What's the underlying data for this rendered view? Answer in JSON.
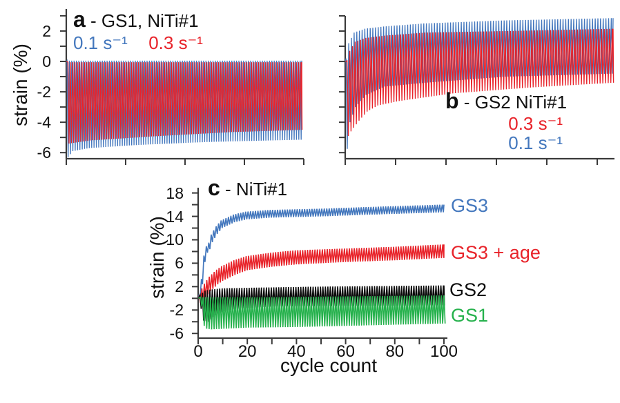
{
  "colors": {
    "blue": "#4377BD",
    "red": "#E8232A",
    "green": "#25B14C",
    "black": "#0B0B0B",
    "axis": "#3A3A3A",
    "text": "#111111"
  },
  "chart_data": [
    {
      "panel": "a",
      "type": "line",
      "panel_letter": "a",
      "title_rest": "- GS1, NiTi#1",
      "ylabel": "strain (%)",
      "xlabel": "",
      "ylim": [
        -6.4,
        3.45
      ],
      "y_ticks_labeled": [
        2,
        0,
        -2,
        -4,
        -6
      ],
      "y_ticks_minor": [
        3,
        1,
        -1,
        -3,
        -5
      ],
      "x_axis_labeled": false,
      "x_range_cycles": [
        0,
        100
      ],
      "legend": [
        {
          "label": "0.1 s⁻¹",
          "color_key": "blue"
        },
        {
          "label": "0.3 s⁻¹",
          "color_key": "red"
        }
      ],
      "series": [
        {
          "name": "0.1 s-1",
          "color_key": "blue",
          "cycles": 100,
          "upper_envelope": [
            [
              1,
              0.05
            ],
            [
              100,
              0.05
            ]
          ],
          "lower_envelope": [
            [
              1,
              -6.3
            ],
            [
              3,
              -5.9
            ],
            [
              10,
              -5.7
            ],
            [
              30,
              -5.5
            ],
            [
              60,
              -5.3
            ],
            [
              100,
              -5.15
            ]
          ]
        },
        {
          "name": "0.3 s-1",
          "color_key": "red",
          "cycles": 100,
          "upper_envelope": [
            [
              1,
              -0.05
            ],
            [
              100,
              -0.05
            ]
          ],
          "lower_envelope": [
            [
              1,
              -5.4
            ],
            [
              10,
              -5.2
            ],
            [
              40,
              -4.9
            ],
            [
              70,
              -4.65
            ],
            [
              100,
              -4.5
            ]
          ]
        }
      ]
    },
    {
      "panel": "b",
      "type": "line",
      "panel_letter": "b",
      "title_rest": "- GS2 NiTi#1",
      "ylabel": "",
      "xlabel": "",
      "ylim": [
        -6.4,
        3.0
      ],
      "y_ticks_labeled": [],
      "y_ticks_minor": [
        3,
        2,
        1,
        0,
        -1,
        -2,
        -3,
        -4,
        -5,
        -6
      ],
      "x_axis_labeled": false,
      "x_range_cycles": [
        0,
        100
      ],
      "legend": [
        {
          "label": "0.3 s⁻¹",
          "color_key": "red"
        },
        {
          "label": "0.1 s⁻¹",
          "color_key": "blue"
        }
      ],
      "series": [
        {
          "name": "0.1 s-1",
          "color_key": "blue",
          "cycles": 100,
          "upper_envelope": [
            [
              1,
              0.2
            ],
            [
              2,
              1.2
            ],
            [
              4,
              1.9
            ],
            [
              8,
              2.15
            ],
            [
              15,
              2.3
            ],
            [
              30,
              2.5
            ],
            [
              60,
              2.7
            ],
            [
              100,
              2.85
            ]
          ],
          "lower_envelope": [
            [
              1,
              -5.75
            ],
            [
              2,
              -4.0
            ],
            [
              4,
              -3.0
            ],
            [
              8,
              -2.2
            ],
            [
              15,
              -1.65
            ],
            [
              30,
              -1.4
            ],
            [
              60,
              -1.0
            ],
            [
              100,
              -0.8
            ]
          ]
        },
        {
          "name": "0.3 s-1",
          "color_key": "red",
          "cycles": 100,
          "upper_envelope": [
            [
              1,
              0.05
            ],
            [
              2,
              0.7
            ],
            [
              4,
              1.3
            ],
            [
              8,
              1.55
            ],
            [
              15,
              1.7
            ],
            [
              30,
              1.9
            ],
            [
              60,
              2.0
            ],
            [
              100,
              2.15
            ]
          ],
          "lower_envelope": [
            [
              1,
              -4.9
            ],
            [
              2,
              -4.6
            ],
            [
              5,
              -3.9
            ],
            [
              8,
              -3.3
            ],
            [
              12,
              -2.9
            ],
            [
              20,
              -2.6
            ],
            [
              40,
              -2.1
            ],
            [
              70,
              -1.7
            ],
            [
              100,
              -1.4
            ]
          ]
        }
      ]
    },
    {
      "panel": "c",
      "type": "line",
      "panel_letter": "c",
      "title_rest": "- NiTi#1",
      "ylabel": "strain (%)",
      "xlabel": "cycle count",
      "ylim": [
        -6.8,
        18.9
      ],
      "y_ticks_labeled": [
        18,
        14,
        10,
        6,
        2,
        -2,
        -6
      ],
      "y_ticks_minor": [
        16,
        12,
        8,
        4,
        0,
        -4
      ],
      "x_axis_labeled": true,
      "x_ticks_labeled": [
        0,
        20,
        40,
        60,
        80,
        100
      ],
      "x_ticks_minor": [
        10,
        30,
        50,
        70,
        90
      ],
      "x_range_cycles": [
        0,
        100
      ],
      "series_labels": [
        {
          "label": "GS3",
          "color_key": "blue"
        },
        {
          "label": "GS3 + age",
          "color_key": "red"
        },
        {
          "label": "GS2",
          "color_key": "black"
        },
        {
          "label": "GS1",
          "color_key": "green"
        }
      ],
      "series": [
        {
          "name": "GS3",
          "color_key": "blue",
          "cycles": 100,
          "upper_envelope": [
            [
              1,
              0.4
            ],
            [
              2,
              3.3
            ],
            [
              3,
              7.3
            ],
            [
              4,
              8.9
            ],
            [
              5,
              9.5
            ],
            [
              6,
              10.9
            ],
            [
              8,
              12.3
            ],
            [
              10,
              13.3
            ],
            [
              15,
              14.3
            ],
            [
              20,
              14.8
            ],
            [
              30,
              15.1
            ],
            [
              50,
              15.3
            ],
            [
              70,
              15.6
            ],
            [
              100,
              16.0
            ]
          ],
          "lower_envelope": [
            [
              1,
              -0.1
            ],
            [
              2,
              2.4
            ],
            [
              3,
              6.2
            ],
            [
              4,
              7.8
            ],
            [
              5,
              8.4
            ],
            [
              6,
              9.6
            ],
            [
              8,
              11.0
            ],
            [
              10,
              12.0
            ],
            [
              15,
              13.0
            ],
            [
              20,
              13.5
            ],
            [
              30,
              13.8
            ],
            [
              50,
              14.0
            ],
            [
              70,
              14.3
            ],
            [
              100,
              14.7
            ]
          ]
        },
        {
          "name": "GS3 + age",
          "color_key": "red",
          "cycles": 100,
          "upper_envelope": [
            [
              1,
              0.5
            ],
            [
              2,
              1.7
            ],
            [
              3,
              2.5
            ],
            [
              5,
              3.7
            ],
            [
              8,
              4.9
            ],
            [
              10,
              5.5
            ],
            [
              15,
              6.5
            ],
            [
              20,
              7.2
            ],
            [
              30,
              7.8
            ],
            [
              40,
              8.2
            ],
            [
              60,
              8.5
            ],
            [
              80,
              8.8
            ],
            [
              100,
              9.2
            ]
          ],
          "lower_envelope": [
            [
              1,
              -0.8
            ],
            [
              2,
              -0.5
            ],
            [
              3,
              0.2
            ],
            [
              5,
              1.2
            ],
            [
              8,
              2.4
            ],
            [
              10,
              3.0
            ],
            [
              15,
              4.0
            ],
            [
              20,
              4.8
            ],
            [
              30,
              5.4
            ],
            [
              40,
              5.8
            ],
            [
              60,
              6.2
            ],
            [
              80,
              6.5
            ],
            [
              100,
              6.9
            ]
          ]
        },
        {
          "name": "GS2",
          "color_key": "black",
          "cycles": 100,
          "upper_envelope": [
            [
              1,
              0.6
            ],
            [
              3,
              1.3
            ],
            [
              5,
              1.5
            ],
            [
              10,
              1.7
            ],
            [
              20,
              1.8
            ],
            [
              50,
              2.0
            ],
            [
              100,
              2.2
            ]
          ],
          "lower_envelope": [
            [
              1,
              -1.8
            ],
            [
              2,
              -3.8
            ],
            [
              4,
              -4.0
            ],
            [
              6,
              -3.2
            ],
            [
              8,
              -2.6
            ],
            [
              10,
              -2.2
            ],
            [
              15,
              -1.8
            ],
            [
              30,
              -1.4
            ],
            [
              100,
              -1.2
            ]
          ]
        },
        {
          "name": "GS1",
          "color_key": "green",
          "cycles": 100,
          "upper_envelope": [
            [
              1,
              0.2
            ],
            [
              30,
              0.2
            ],
            [
              100,
              0.5
            ]
          ],
          "lower_envelope": [
            [
              1,
              -1.4
            ],
            [
              2,
              -4.7
            ],
            [
              3,
              -5.2
            ],
            [
              5,
              -5.3
            ],
            [
              10,
              -5.2
            ],
            [
              20,
              -5.0
            ],
            [
              40,
              -4.9
            ],
            [
              70,
              -4.6
            ],
            [
              100,
              -4.3
            ]
          ]
        }
      ]
    }
  ]
}
